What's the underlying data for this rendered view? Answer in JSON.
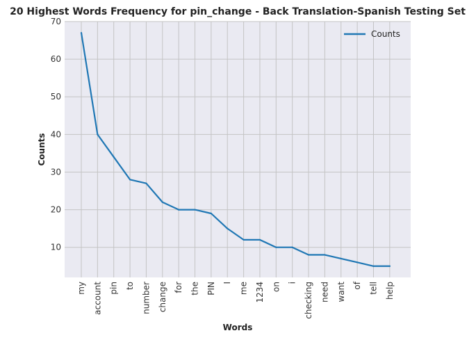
{
  "chart_data": {
    "type": "line",
    "title": "20 Highest Words Frequency for pin_change - Back Translation-Spanish Testing Set",
    "xlabel": "Words",
    "ylabel": "Counts",
    "categories": [
      "my",
      "account",
      "pin",
      "to",
      "number",
      "change",
      "for",
      "the",
      "PIN",
      "I",
      "me",
      "1234",
      "on",
      "i",
      "checking",
      "need",
      "want",
      "of",
      "tell",
      "help"
    ],
    "series": [
      {
        "name": "Counts",
        "color": "#1f77b4",
        "values": [
          67,
          40,
          34,
          28,
          27,
          22,
          20,
          20,
          19,
          15,
          12,
          12,
          10,
          10,
          8,
          8,
          7,
          6,
          5,
          5
        ]
      }
    ],
    "yticks": [
      10,
      20,
      30,
      40,
      50,
      60,
      70
    ],
    "ylim": [
      2,
      70
    ],
    "grid": true,
    "legend_position": "top-right",
    "colors": {
      "plot_background": "#eaeaf2",
      "grid": "#c4c4c4",
      "line": "#1f77b4"
    }
  }
}
